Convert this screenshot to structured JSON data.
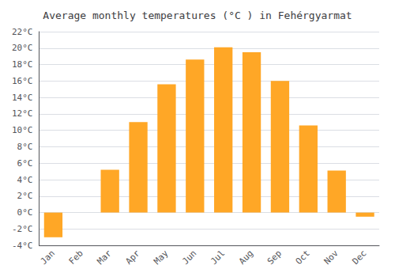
{
  "chart_data": {
    "type": "bar",
    "title": "Average monthly temperatures (°C ) in Fehérgyarmat",
    "categories": [
      "Jan",
      "Feb",
      "Mar",
      "Apr",
      "May",
      "Jun",
      "Jul",
      "Aug",
      "Sep",
      "Oct",
      "Nov",
      "Dec"
    ],
    "values": [
      -3.0,
      0.0,
      5.2,
      11.0,
      15.6,
      18.6,
      20.1,
      19.5,
      16.0,
      10.6,
      5.1,
      -0.5
    ],
    "color": "#FFA726",
    "ylim": [
      -4,
      22
    ],
    "yticks": [
      {
        "value": -4,
        "label": "-4°C"
      },
      {
        "value": -2,
        "label": "-2°C"
      },
      {
        "value": 0,
        "label": "0°C"
      },
      {
        "value": 2,
        "label": "2°C"
      },
      {
        "value": 4,
        "label": "4°C"
      },
      {
        "value": 6,
        "label": "6°C"
      },
      {
        "value": 8,
        "label": "8°C"
      },
      {
        "value": 10,
        "label": "10°C"
      },
      {
        "value": 12,
        "label": "12°C"
      },
      {
        "value": 14,
        "label": "14°C"
      },
      {
        "value": 16,
        "label": "16°C"
      },
      {
        "value": 18,
        "label": "18°C"
      },
      {
        "value": 20,
        "label": "20°C"
      },
      {
        "value": 22,
        "label": "22°C"
      }
    ],
    "grid": true
  }
}
